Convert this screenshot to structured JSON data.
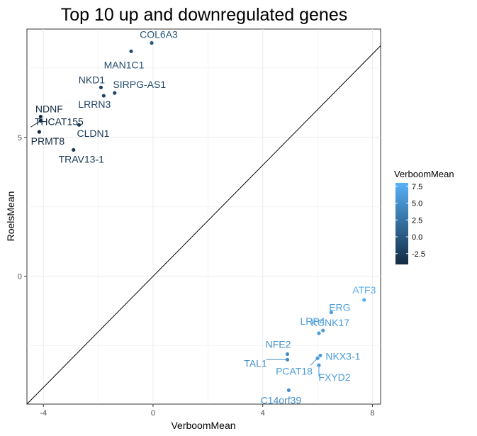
{
  "chart_data": {
    "type": "scatter",
    "title": "Top 10 up and downregulated genes",
    "xlabel": "VerboomMean",
    "ylabel": "RoelsMean",
    "xlim": [
      -4.6,
      8.3
    ],
    "ylim": [
      -4.6,
      8.9
    ],
    "x_ticks": [
      -4,
      0,
      4,
      8
    ],
    "y_ticks": [
      0,
      5
    ],
    "grid": true,
    "reference_line": {
      "type": "identity",
      "slope": 1,
      "intercept": 0
    },
    "color_scale": {
      "title": "VerboomMean",
      "ticks": [
        7.5,
        5.0,
        2.5,
        0.0,
        -2.5
      ],
      "tick_labels": [
        "7.5",
        "5.0",
        "2.5",
        "0.0",
        "-2.5"
      ],
      "low_color": "#132b43",
      "high_color": "#56b1f7",
      "min": -4.1,
      "max": 8.0
    },
    "points": [
      {
        "label": "COL6A3",
        "x": -0.05,
        "y": 8.4
      },
      {
        "label": "MAN1C1",
        "x": -0.8,
        "y": 8.1
      },
      {
        "label": "NKD1",
        "x": -1.9,
        "y": 6.8
      },
      {
        "label": "SIRPG-AS1",
        "x": -1.4,
        "y": 6.6
      },
      {
        "label": "LRRN3",
        "x": -1.8,
        "y": 6.5
      },
      {
        "label": "NDNF",
        "x": -4.1,
        "y": 5.75
      },
      {
        "label": "THCAT155",
        "x": -4.1,
        "y": 5.6
      },
      {
        "label": "PRMT8",
        "x": -4.15,
        "y": 5.2
      },
      {
        "label": "CLDN1",
        "x": -2.7,
        "y": 5.45
      },
      {
        "label": "TRAV13-1",
        "x": -2.9,
        "y": 4.55
      },
      {
        "label": "ATF3",
        "x": 7.7,
        "y": -0.85
      },
      {
        "label": "ERG",
        "x": 6.5,
        "y": -1.3
      },
      {
        "label": "KCNK17",
        "x": 6.2,
        "y": -1.95
      },
      {
        "label": "LRP4",
        "x": 6.05,
        "y": -2.05
      },
      {
        "label": "NFE2",
        "x": 4.9,
        "y": -2.8
      },
      {
        "label": "TAL1",
        "x": 4.9,
        "y": -3.0
      },
      {
        "label": "NKX3-1",
        "x": 6.1,
        "y": -2.85
      },
      {
        "label": "PCAT18",
        "x": 6.0,
        "y": -2.95
      },
      {
        "label": "FXYD2",
        "x": 6.05,
        "y": -3.2
      },
      {
        "label": "C14orf39",
        "x": 4.95,
        "y": -4.1
      }
    ]
  }
}
